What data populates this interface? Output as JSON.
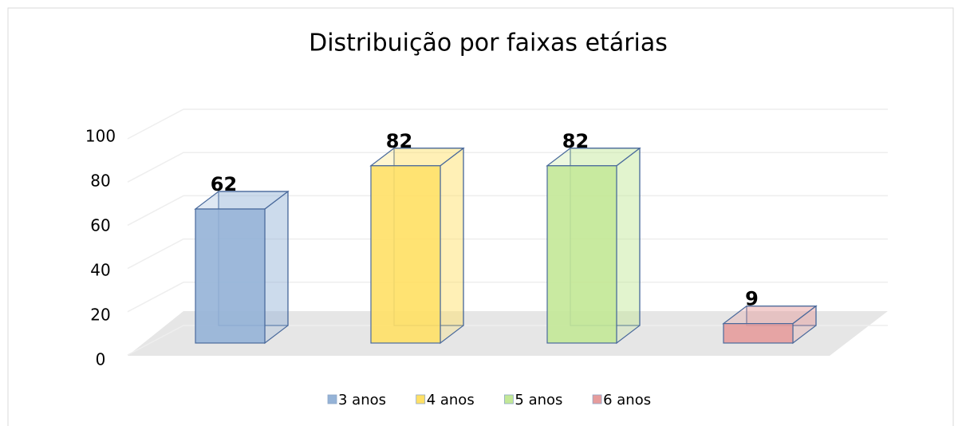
{
  "chart_data": {
    "type": "bar3d",
    "title": "Distribuição por faixas etárias",
    "series": [
      {
        "name": "3 anos",
        "color": "#95b3d7",
        "values": [
          62
        ]
      },
      {
        "name": "4 anos",
        "color": "#ffe066",
        "values": [
          82
        ]
      },
      {
        "name": "5 anos",
        "color": "#c3e897",
        "values": [
          82
        ]
      },
      {
        "name": "6 anos",
        "color": "#e69c9c",
        "values": [
          9
        ]
      }
    ],
    "ylim": [
      0,
      100
    ],
    "yticks": [
      0,
      20,
      40,
      60,
      80,
      100
    ],
    "grid": true,
    "legend": "bottom"
  }
}
